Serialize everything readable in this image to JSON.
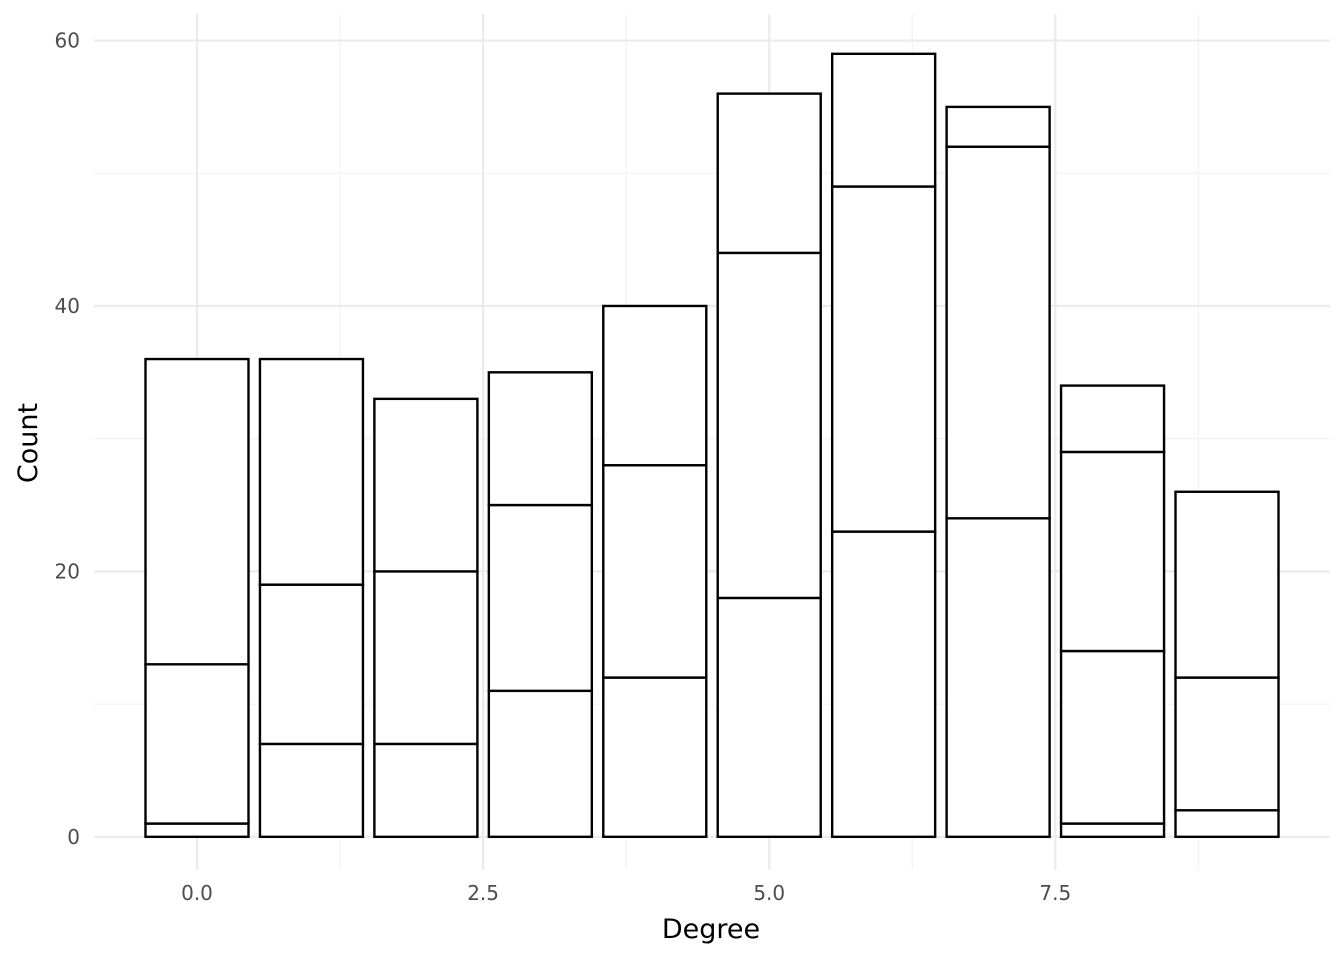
{
  "chart_data": {
    "type": "bar",
    "stacked": true,
    "xlabel": "Degree",
    "ylabel": "Count",
    "xlim": [
      -0.9,
      9.9
    ],
    "ylim": [
      -2.5,
      62
    ],
    "x_ticks": [
      0.0,
      2.5,
      5.0,
      7.5
    ],
    "x_tick_labels": [
      "0.0",
      "2.5",
      "5.0",
      "7.5"
    ],
    "y_ticks": [
      0,
      20,
      40,
      60
    ],
    "y_tick_labels": [
      "0",
      "20",
      "40",
      "60"
    ],
    "grid": true,
    "legend": "none",
    "categories": [
      0,
      1,
      2,
      3,
      4,
      5,
      6,
      7,
      8,
      9
    ],
    "totals": [
      36,
      36,
      33,
      35,
      40,
      56,
      59,
      55,
      34,
      26
    ],
    "segment_boundaries": [
      [
        1,
        13
      ],
      [
        7,
        19
      ],
      [
        7,
        20
      ],
      [
        11,
        25
      ],
      [
        12,
        28
      ],
      [
        18,
        44
      ],
      [
        23,
        49
      ],
      [
        24,
        52
      ],
      [
        1,
        14,
        29
      ],
      [
        2,
        12
      ]
    ],
    "colors": {
      "fill": "#ffffff",
      "outline": "#000000",
      "grid": "#ebebeb"
    }
  }
}
